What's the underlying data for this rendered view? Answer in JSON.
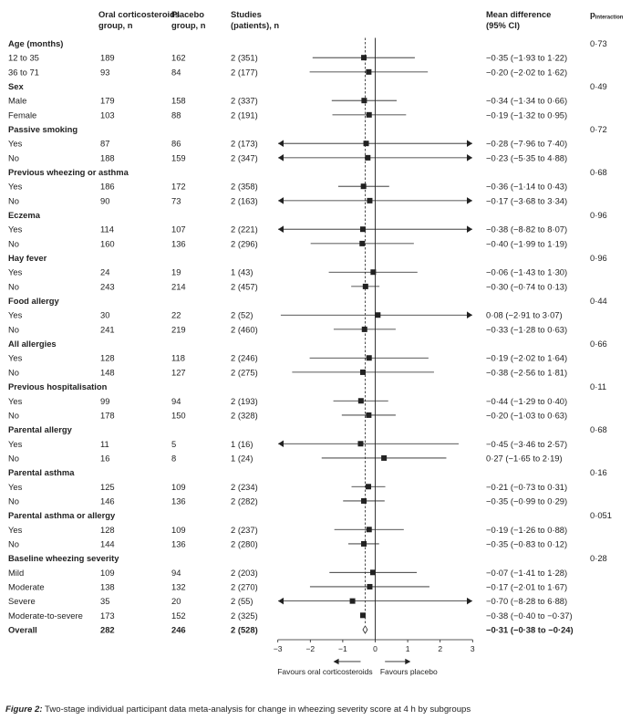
{
  "header": {
    "oral": [
      "Oral corticosteroids",
      "group, n"
    ],
    "placebo": [
      "Placebo",
      "group, n"
    ],
    "studies": [
      "Studies",
      "(patients), n"
    ],
    "md": [
      "Mean difference",
      "(95% CI)"
    ],
    "p_main": "p",
    "p_sub": "interaction"
  },
  "chart_data": {
    "type": "forest",
    "x_label_left": "Favours oral corticosteroids",
    "x_label_right": "Favours placebo",
    "xlim": [
      -3,
      3
    ],
    "xticks": [
      -3,
      -2,
      -1,
      0,
      1,
      2,
      3
    ],
    "xtick_labels": [
      "−3",
      "−2",
      "−1",
      "0",
      "1",
      "2",
      "3"
    ],
    "reference_line": 0,
    "overall_line": -0.31,
    "groups": [
      {
        "name": "Age (months)",
        "p": "0·73",
        "rows": [
          {
            "label": "12 to 35",
            "oral": "189",
            "placebo": "162",
            "studies": "2 (351)",
            "md": "−0·35 (−1·93 to 1·22)",
            "est": -0.35,
            "lo": -1.93,
            "hi": 1.22
          },
          {
            "label": "36 to 71",
            "oral": "93",
            "placebo": "84",
            "studies": "2 (177)",
            "md": "−0·20 (−2·02 to 1·62)",
            "est": -0.2,
            "lo": -2.02,
            "hi": 1.62
          }
        ]
      },
      {
        "name": "Sex",
        "p": "0·49",
        "rows": [
          {
            "label": "Male",
            "oral": "179",
            "placebo": "158",
            "studies": "2 (337)",
            "md": "−0·34 (−1·34 to 0·66)",
            "est": -0.34,
            "lo": -1.34,
            "hi": 0.66
          },
          {
            "label": "Female",
            "oral": "103",
            "placebo": "88",
            "studies": "2 (191)",
            "md": "−0·19 (−1·32 to 0·95)",
            "est": -0.19,
            "lo": -1.32,
            "hi": 0.95
          }
        ]
      },
      {
        "name": "Passive smoking",
        "p": "0·72",
        "rows": [
          {
            "label": "Yes",
            "oral": "87",
            "placebo": "86",
            "studies": "2 (173)",
            "md": "−0·28 (−7·96 to 7·40)",
            "est": -0.28,
            "lo": -7.96,
            "hi": 7.4
          },
          {
            "label": "No",
            "oral": "188",
            "placebo": "159",
            "studies": "2 (347)",
            "md": "−0·23 (−5·35 to 4·88)",
            "est": -0.23,
            "lo": -5.35,
            "hi": 4.88
          }
        ]
      },
      {
        "name": "Previous wheezing or asthma",
        "p": "0·68",
        "rows": [
          {
            "label": "Yes",
            "oral": "186",
            "placebo": "172",
            "studies": "2 (358)",
            "md": "−0·36 (−1·14 to 0·43)",
            "est": -0.36,
            "lo": -1.14,
            "hi": 0.43
          },
          {
            "label": "No",
            "oral": "90",
            "placebo": "73",
            "studies": "2 (163)",
            "md": "−0·17 (−3·68 to 3·34)",
            "est": -0.17,
            "lo": -3.68,
            "hi": 3.34
          }
        ]
      },
      {
        "name": "Eczema",
        "p": "0·96",
        "rows": [
          {
            "label": "Yes",
            "oral": "114",
            "placebo": "107",
            "studies": "2 (221)",
            "md": "−0·38 (−8·82 to 8·07)",
            "est": -0.38,
            "lo": -8.82,
            "hi": 8.07
          },
          {
            "label": "No",
            "oral": "160",
            "placebo": "136",
            "studies": "2 (296)",
            "md": "−0·40 (−1·99 to 1·19)",
            "est": -0.4,
            "lo": -1.99,
            "hi": 1.19
          }
        ]
      },
      {
        "name": "Hay fever",
        "p": "0·96",
        "rows": [
          {
            "label": "Yes",
            "oral": "24",
            "placebo": "19",
            "studies": "1 (43)",
            "md": "−0·06 (−1·43 to 1·30)",
            "est": -0.06,
            "lo": -1.43,
            "hi": 1.3
          },
          {
            "label": "No",
            "oral": "243",
            "placebo": "214",
            "studies": "2 (457)",
            "md": "−0·30 (−0·74 to 0·13)",
            "est": -0.3,
            "lo": -0.74,
            "hi": 0.13
          }
        ]
      },
      {
        "name": "Food allergy",
        "p": "0·44",
        "rows": [
          {
            "label": "Yes",
            "oral": "30",
            "placebo": "22",
            "studies": "2 (52)",
            "md": "0·08 (−2·91 to 3·07)",
            "est": 0.08,
            "lo": -2.91,
            "hi": 3.07
          },
          {
            "label": "No",
            "oral": "241",
            "placebo": "219",
            "studies": "2 (460)",
            "md": "−0·33 (−1·28 to 0·63)",
            "est": -0.33,
            "lo": -1.28,
            "hi": 0.63
          }
        ]
      },
      {
        "name": "All allergies",
        "p": "0·66",
        "rows": [
          {
            "label": "Yes",
            "oral": "128",
            "placebo": "118",
            "studies": "2 (246)",
            "md": "−0·19 (−2·02 to 1·64)",
            "est": -0.19,
            "lo": -2.02,
            "hi": 1.64
          },
          {
            "label": "No",
            "oral": "148",
            "placebo": "127",
            "studies": "2 (275)",
            "md": "−0·38 (−2·56 to 1·81)",
            "est": -0.38,
            "lo": -2.56,
            "hi": 1.81
          }
        ]
      },
      {
        "name": "Previous hospitalisation",
        "p": "0·11",
        "rows": [
          {
            "label": "Yes",
            "oral": "99",
            "placebo": "94",
            "studies": "2 (193)",
            "md": "−0·44 (−1·29 to 0·40)",
            "est": -0.44,
            "lo": -1.29,
            "hi": 0.4
          },
          {
            "label": "No",
            "oral": "178",
            "placebo": "150",
            "studies": "2 (328)",
            "md": "−0·20 (−1·03 to 0·63)",
            "est": -0.2,
            "lo": -1.03,
            "hi": 0.63
          }
        ]
      },
      {
        "name": "Parental allergy",
        "p": "0·68",
        "rows": [
          {
            "label": "Yes",
            "oral": "11",
            "placebo": "5",
            "studies": "1 (16)",
            "md": "−0·45 (−3·46 to 2·57)",
            "est": -0.45,
            "lo": -3.46,
            "hi": 2.57
          },
          {
            "label": "No",
            "oral": "16",
            "placebo": "8",
            "studies": "1 (24)",
            "md": "0·27 (−1·65 to 2·19)",
            "est": 0.27,
            "lo": -1.65,
            "hi": 2.19
          }
        ]
      },
      {
        "name": "Parental asthma",
        "p": "0·16",
        "rows": [
          {
            "label": "Yes",
            "oral": "125",
            "placebo": "109",
            "studies": "2 (234)",
            "md": "−0·21 (−0·73 to 0·31)",
            "est": -0.21,
            "lo": -0.73,
            "hi": 0.31
          },
          {
            "label": "No",
            "oral": "146",
            "placebo": "136",
            "studies": "2 (282)",
            "md": "−0·35 (−0·99 to 0·29)",
            "est": -0.35,
            "lo": -0.99,
            "hi": 0.29
          }
        ]
      },
      {
        "name": "Parental asthma or allergy",
        "p": "0·051",
        "rows": [
          {
            "label": "Yes",
            "oral": "128",
            "placebo": "109",
            "studies": "2 (237)",
            "md": "−0·19 (−1·26 to 0·88)",
            "est": -0.19,
            "lo": -1.26,
            "hi": 0.88
          },
          {
            "label": "No",
            "oral": "144",
            "placebo": "136",
            "studies": "2 (280)",
            "md": "−0·35 (−0·83 to 0·12)",
            "est": -0.35,
            "lo": -0.83,
            "hi": 0.12
          }
        ]
      },
      {
        "name": "Baseline wheezing severity",
        "p": "0·28",
        "rows": [
          {
            "label": "Mild",
            "oral": "109",
            "placebo": "94",
            "studies": "2 (203)",
            "md": "−0·07 (−1·41 to 1·28)",
            "est": -0.07,
            "lo": -1.41,
            "hi": 1.28
          },
          {
            "label": "Moderate",
            "oral": "138",
            "placebo": "132",
            "studies": "2 (270)",
            "md": "−0·17 (−2·01 to 1·67)",
            "est": -0.17,
            "lo": -2.01,
            "hi": 1.67
          },
          {
            "label": "Severe",
            "oral": "35",
            "placebo": "20",
            "studies": "2 (55)",
            "md": "−0·70 (−8·28 to 6·88)",
            "est": -0.7,
            "lo": -8.28,
            "hi": 6.88
          },
          {
            "label": "Moderate-to-severe",
            "oral": "173",
            "placebo": "152",
            "studies": "2 (325)",
            "md": "−0·38 (−0·40 to −0·37)",
            "est": -0.38,
            "lo": -0.4,
            "hi": -0.37
          }
        ]
      }
    ],
    "overall": {
      "label": "Overall",
      "oral": "282",
      "placebo": "246",
      "studies": "2 (528)",
      "md": "−0·31 (−0·38 to −0·24)",
      "est": -0.31,
      "lo": -0.38,
      "hi": -0.24
    }
  },
  "caption": {
    "label": "Figure 2:",
    "text": " Two-stage individual participant data meta-analysis for change in wheezing severity score at 4 h by subgroups"
  }
}
